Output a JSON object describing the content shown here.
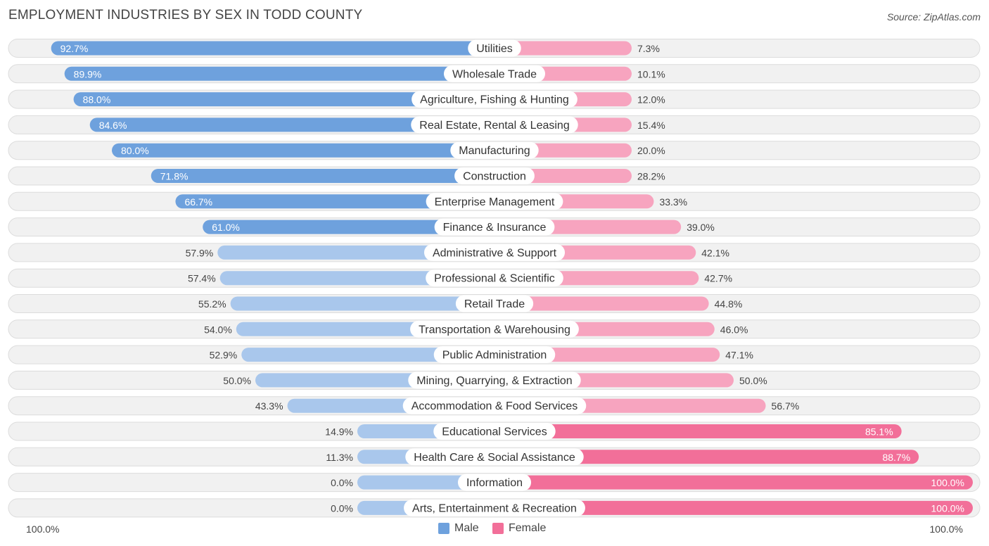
{
  "title": "EMPLOYMENT INDUSTRIES BY SEX IN TODD COUNTY",
  "source": "Source: ZipAtlas.com",
  "colors": {
    "male_strong": "#6ea1dd",
    "male_light": "#a9c7ec",
    "female_strong": "#f26f99",
    "female_light": "#f7a4bf",
    "track": "#f1f1f1",
    "track_border": "#dcdcdc"
  },
  "legend": {
    "male": "Male",
    "female": "Female"
  },
  "axis": {
    "left_label": "100.0%",
    "right_label": "100.0%"
  },
  "chart_data": {
    "type": "bar",
    "orientation": "horizontal-diverging",
    "title": "EMPLOYMENT INDUSTRIES BY SEX IN TODD COUNTY",
    "xlim": [
      0,
      100
    ],
    "unit": "%",
    "categories": [
      "Utilities",
      "Wholesale Trade",
      "Agriculture, Fishing & Hunting",
      "Real Estate, Rental & Leasing",
      "Manufacturing",
      "Construction",
      "Enterprise Management",
      "Finance & Insurance",
      "Administrative & Support",
      "Professional & Scientific",
      "Retail Trade",
      "Transportation & Warehousing",
      "Public Administration",
      "Mining, Quarrying, & Extraction",
      "Accommodation & Food Services",
      "Educational Services",
      "Health Care & Social Assistance",
      "Information",
      "Arts, Entertainment & Recreation"
    ],
    "series": [
      {
        "name": "Male",
        "values": [
          92.7,
          89.9,
          88.0,
          84.6,
          80.0,
          71.8,
          66.7,
          61.0,
          57.9,
          57.4,
          55.2,
          54.0,
          52.9,
          50.0,
          43.3,
          14.9,
          11.3,
          0.0,
          0.0
        ],
        "labels": [
          "92.7%",
          "89.9%",
          "88.0%",
          "84.6%",
          "80.0%",
          "71.8%",
          "66.7%",
          "61.0%",
          "57.9%",
          "57.4%",
          "55.2%",
          "54.0%",
          "52.9%",
          "50.0%",
          "43.3%",
          "14.9%",
          "11.3%",
          "0.0%",
          "0.0%"
        ]
      },
      {
        "name": "Female",
        "values": [
          7.3,
          10.1,
          12.0,
          15.4,
          20.0,
          28.2,
          33.3,
          39.0,
          42.1,
          42.7,
          44.8,
          46.0,
          47.1,
          50.0,
          56.7,
          85.1,
          88.7,
          100.0,
          100.0
        ],
        "labels": [
          "7.3%",
          "10.1%",
          "12.0%",
          "15.4%",
          "20.0%",
          "28.2%",
          "33.3%",
          "39.0%",
          "42.1%",
          "42.7%",
          "44.8%",
          "46.0%",
          "47.1%",
          "50.0%",
          "56.7%",
          "85.1%",
          "88.7%",
          "100.0%",
          "100.0%"
        ]
      }
    ]
  }
}
